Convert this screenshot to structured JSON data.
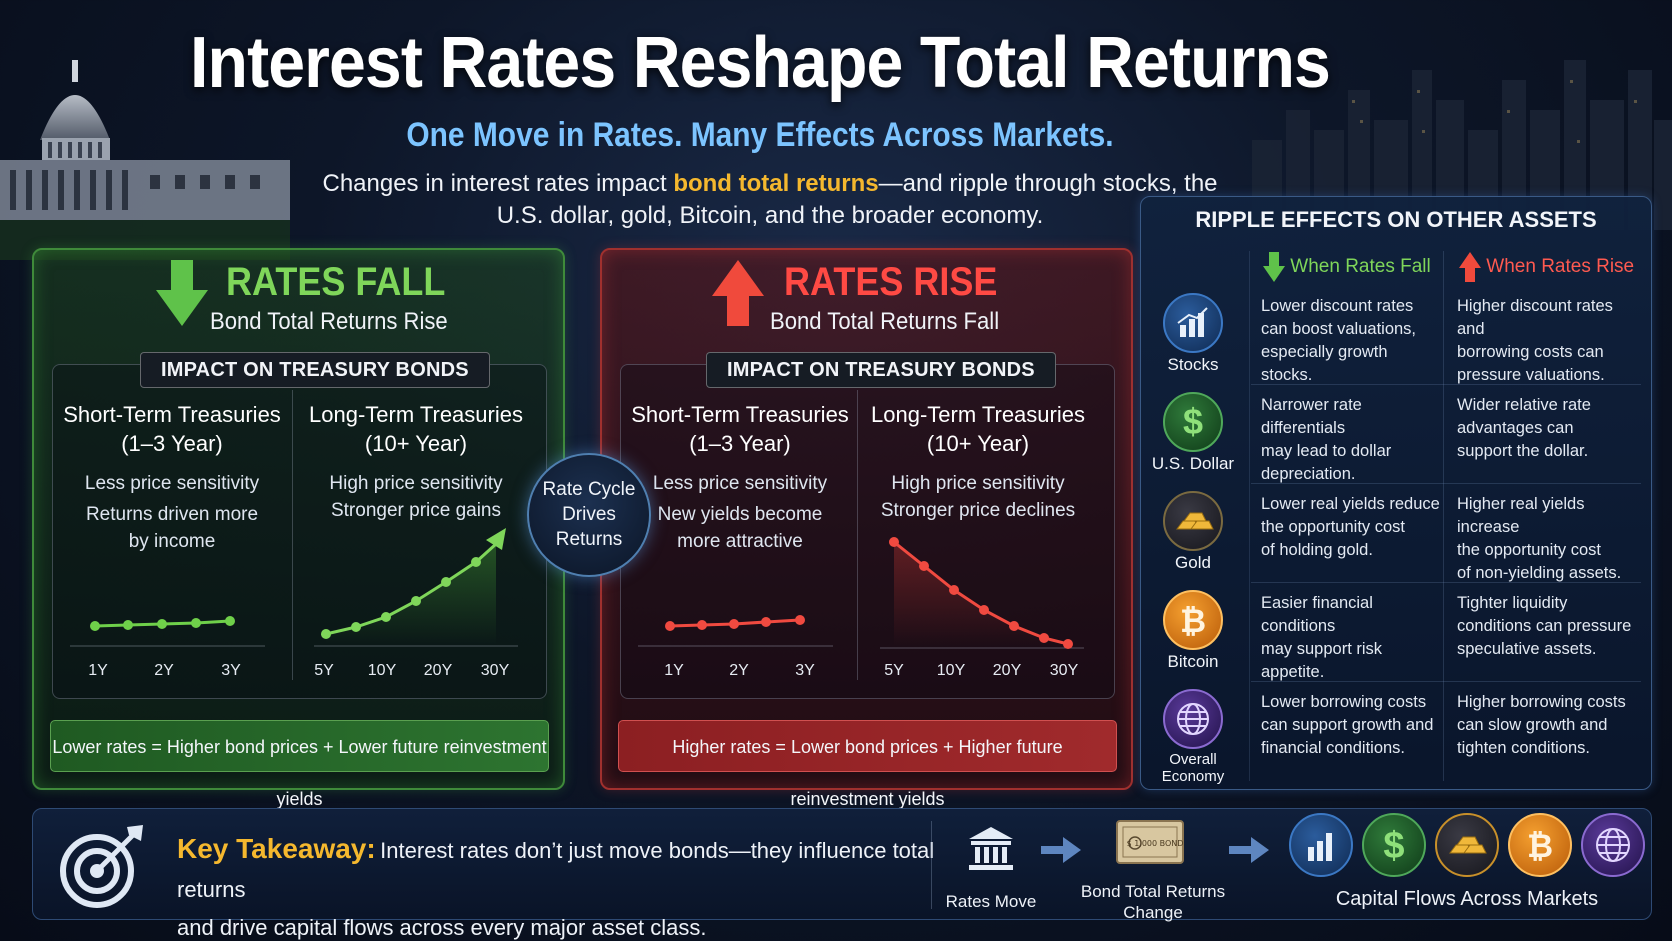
{
  "header": {
    "title": "Interest Rates Reshape Total Returns",
    "subtitle": "One Move in Rates. Many Effects Across Markets.",
    "intro_pre": "Changes in interest rates impact ",
    "intro_highlight": "bond total returns",
    "intro_post": "—and ripple through stocks, the U.S. dollar, gold, Bitcoin, and the broader economy."
  },
  "panels": {
    "fall": {
      "title": "RATES FALL",
      "subtitle": "Bond Total Returns Rise",
      "impact_tag": "IMPACT ON TREASURY BONDS",
      "short": {
        "title1": "Short-Term Treasuries",
        "title2": "(1–3 Year)",
        "line1": "Less price sensitivity",
        "line2": "Returns driven more",
        "line3": "by income",
        "ticks": [
          "1Y",
          "2Y",
          "3Y"
        ]
      },
      "long": {
        "title1": "Long-Term Treasuries",
        "title2": "(10+ Year)",
        "line1": "High price sensitivity",
        "line2": "Stronger price gains",
        "ticks": [
          "5Y",
          "10Y",
          "20Y",
          "30Y"
        ]
      },
      "equation": "Lower rates = Higher bond prices + Lower future reinvestment yields",
      "color": "#7fd65a"
    },
    "rise": {
      "title": "RATES RISE",
      "subtitle": "Bond Total Returns Fall",
      "impact_tag": "IMPACT ON TREASURY BONDS",
      "short": {
        "title1": "Short-Term Treasuries",
        "title2": "(1–3 Year)",
        "line1": "Less price sensitivity",
        "line2": "New yields become",
        "line3": "more attractive",
        "ticks": [
          "1Y",
          "2Y",
          "3Y"
        ]
      },
      "long": {
        "title1": "Long-Term Treasuries",
        "title2": "(10+ Year)",
        "line1": "High price sensitivity",
        "line2": "Stronger price declines",
        "ticks": [
          "5Y",
          "10Y",
          "20Y",
          "30Y"
        ]
      },
      "equation": "Higher rates = Lower bond prices + Higher future reinvestment yields",
      "color": "#ff4a44"
    }
  },
  "cycle": {
    "line1": "Rate Cycle",
    "line2": "Drives",
    "line3": "Returns"
  },
  "ripple": {
    "title": "RIPPLE EFFECTS ON OTHER ASSETS",
    "col_fall": "When Rates Fall",
    "col_rise": "When Rates Rise",
    "rows": [
      {
        "label": "Stocks",
        "icon": "bar-chart-icon",
        "fall": [
          "Lower discount rates",
          "can boost valuations,",
          "especially growth stocks."
        ],
        "rise": [
          "Higher discount rates and",
          "borrowing costs can",
          "pressure valuations."
        ]
      },
      {
        "label": "U.S. Dollar",
        "icon": "dollar-icon",
        "fall": [
          "Narrower rate differentials",
          "may lead to dollar",
          "depreciation."
        ],
        "rise": [
          "Wider relative rate",
          "advantages can",
          "support the dollar."
        ]
      },
      {
        "label": "Gold",
        "icon": "gold-bars-icon",
        "fall": [
          "Lower real yields reduce",
          "the opportunity cost",
          "of holding gold."
        ],
        "rise": [
          "Higher real yields increase",
          "the opportunity cost",
          "of non-yielding assets."
        ]
      },
      {
        "label": "Bitcoin",
        "icon": "bitcoin-icon",
        "fall": [
          "Easier financial conditions",
          "may support risk",
          "appetite."
        ],
        "rise": [
          "Tighter liquidity",
          "conditions can pressure",
          "speculative assets."
        ]
      },
      {
        "label": "Overall Economy",
        "icon": "globe-icon",
        "fall": [
          "Lower borrowing costs",
          "can support growth and",
          "financial conditions."
        ],
        "rise": [
          "Higher borrowing costs",
          "can slow growth and",
          "tighten conditions."
        ]
      }
    ]
  },
  "takeaway": {
    "label": "Key Takeaway:",
    "text1": "Interest rates don’t just move bonds—they influence total returns",
    "text2": "and drive capital flows across every major asset class.",
    "flow1": "Rates Move",
    "flow2a": "Bond Total Returns",
    "flow2b": "Change",
    "flow3": "Capital Flows Across Markets",
    "bill_text": "$ 1,000 BOND"
  }
}
